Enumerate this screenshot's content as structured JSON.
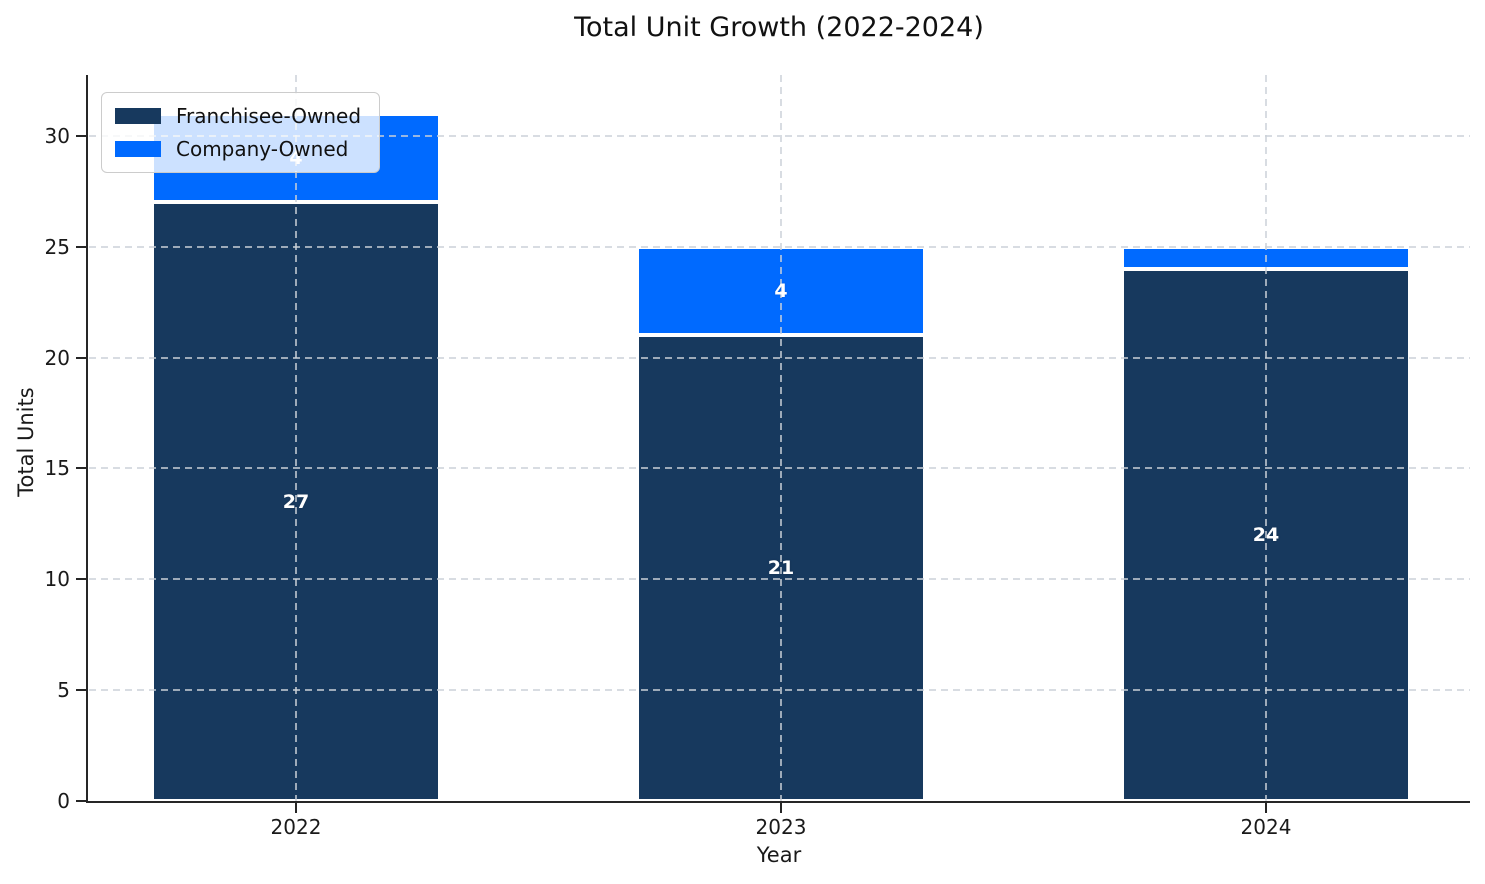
{
  "title": "Total Unit Growth (2022-2024)",
  "axes": {
    "xlabel": "Year",
    "ylabel": "Total Units"
  },
  "legend": {
    "items": [
      {
        "label": "Franchisee-Owned",
        "color": "#17395e"
      },
      {
        "label": "Company-Owned",
        "color": "#006aff"
      }
    ]
  },
  "chart_data": {
    "type": "bar",
    "stacked": true,
    "title": "Total Unit Growth (2022-2024)",
    "xlabel": "Year",
    "ylabel": "Total Units",
    "categories": [
      "2022",
      "2023",
      "2024"
    ],
    "series": [
      {
        "name": "Franchisee-Owned",
        "color": "#17395e",
        "values": [
          27,
          21,
          24
        ]
      },
      {
        "name": "Company-Owned",
        "color": "#006aff",
        "values": [
          4,
          4,
          1
        ]
      }
    ],
    "totals": [
      31,
      25,
      25
    ],
    "yticks": [
      0,
      5,
      10,
      15,
      20,
      25,
      30
    ],
    "ylim": [
      0,
      32.7
    ],
    "grid": true,
    "grid_style": "dashed",
    "legend_position": "upper left",
    "bar_value_labels_shown": [
      "27",
      "4",
      "21",
      "4",
      "24"
    ],
    "bar_value_label_color": "#ffffff"
  }
}
